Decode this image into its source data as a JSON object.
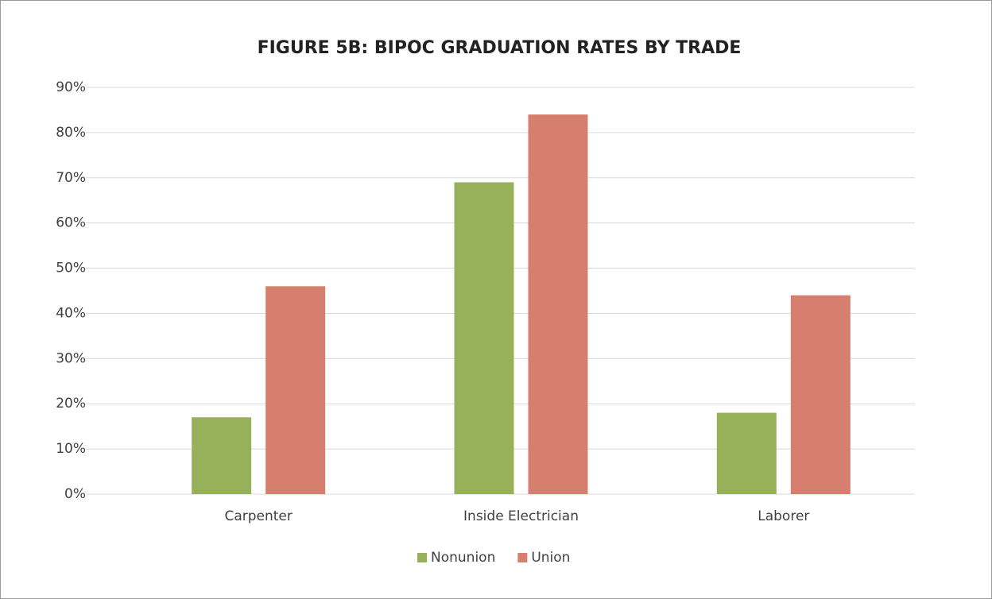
{
  "chart_data": {
    "type": "bar",
    "title": "FIGURE 5B: BIPOC GRADUATION RATES BY TRADE",
    "categories": [
      "Carpenter",
      "Inside Electrician",
      "Laborer"
    ],
    "series": [
      {
        "name": "Nonunion",
        "color": "#97b05a",
        "values": [
          17,
          69,
          18
        ]
      },
      {
        "name": "Union",
        "color": "#d77f6f",
        "values": [
          46,
          84,
          44
        ]
      }
    ],
    "ylim": [
      0,
      90
    ],
    "yticks": [
      {
        "value": 0,
        "label": "0%"
      },
      {
        "value": 10,
        "label": "10%"
      },
      {
        "value": 20,
        "label": "20%"
      },
      {
        "value": 30,
        "label": "30%"
      },
      {
        "value": 40,
        "label": "40%"
      },
      {
        "value": 50,
        "label": "50%"
      },
      {
        "value": 60,
        "label": "60%"
      },
      {
        "value": 70,
        "label": "70%"
      },
      {
        "value": 80,
        "label": "80%"
      },
      {
        "value": 90,
        "label": "90%"
      }
    ],
    "grid": true,
    "legend": "bottom"
  }
}
